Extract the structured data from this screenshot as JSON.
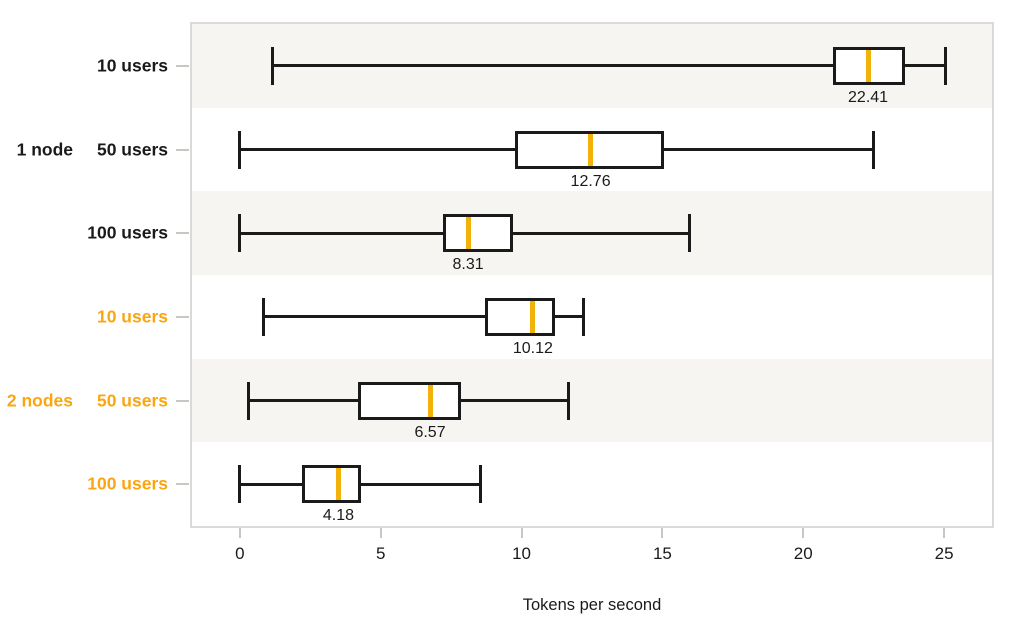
{
  "chart_data": {
    "type": "boxplot",
    "orientation": "horizontal",
    "title": "",
    "xlabel": "Tokens per second",
    "ylabel": "",
    "x_ticks": [
      0,
      5,
      10,
      15,
      20,
      25
    ],
    "xlim": [
      -1.7,
      26.7
    ],
    "grid": false,
    "legend": false,
    "colors": {
      "box_stroke": "#1a1a1a",
      "median": "#F2B20A",
      "group1_text": "#1a1a1a",
      "group2_text": "#FAA613",
      "band": "#f6f5f2",
      "plot_border": "#dcdad7",
      "tick": "#c9c7c4",
      "text": "#1a1a1a"
    },
    "groups": [
      {
        "label": "1 node",
        "color": "#1a1a1a"
      },
      {
        "label": "2 nodes",
        "color": "#FAA613"
      }
    ],
    "rows": [
      {
        "group": "1 node",
        "label": "10 users",
        "min": 1.15,
        "q1": 21.05,
        "median": 22.3,
        "q3": 23.6,
        "max": 25.05,
        "value_label": "22.41",
        "banded": true
      },
      {
        "group": "1 node",
        "label": "50 users",
        "min": 0.0,
        "q1": 9.75,
        "median": 12.45,
        "q3": 15.05,
        "max": 22.5,
        "value_label": "12.76",
        "banded": false
      },
      {
        "group": "1 node",
        "label": "100 users",
        "min": 0.0,
        "q1": 7.2,
        "median": 8.1,
        "q3": 9.7,
        "max": 15.95,
        "value_label": "8.31",
        "banded": true
      },
      {
        "group": "2 nodes",
        "label": "10 users",
        "min": 0.85,
        "q1": 8.7,
        "median": 10.4,
        "q3": 11.2,
        "max": 12.2,
        "value_label": "10.12",
        "banded": false
      },
      {
        "group": "2 nodes",
        "label": "50 users",
        "min": 0.3,
        "q1": 4.2,
        "median": 6.75,
        "q3": 7.85,
        "max": 11.65,
        "value_label": "6.57",
        "banded": true
      },
      {
        "group": "2 nodes",
        "label": "100 users",
        "min": 0.0,
        "q1": 2.2,
        "median": 3.5,
        "q3": 4.3,
        "max": 8.55,
        "value_label": "4.18",
        "banded": false
      }
    ]
  }
}
